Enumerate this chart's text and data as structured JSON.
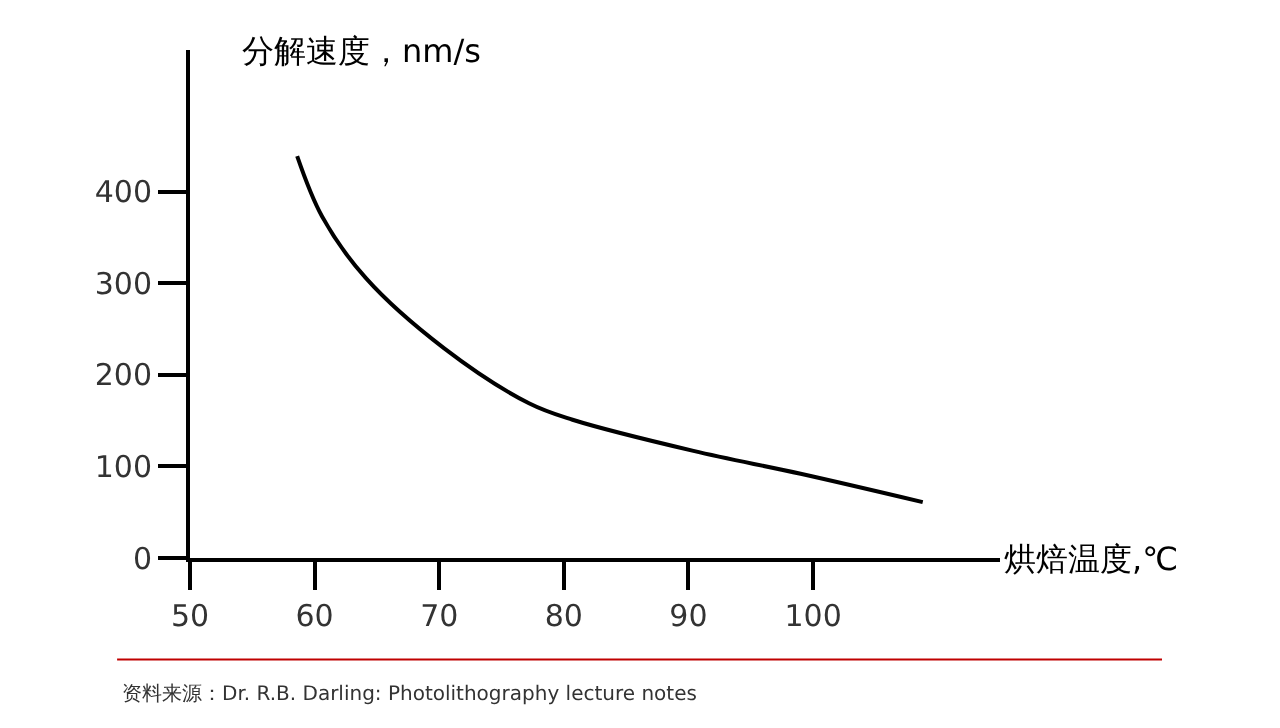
{
  "chart_data": {
    "type": "line",
    "xlabel": "烘焙温度,℃",
    "ylabel": "分解速度，nm/s",
    "x": [
      58.6,
      60.6,
      64.1,
      70.4,
      77.2,
      80.7,
      90.4,
      99.0,
      108.8
    ],
    "series": [
      {
        "color": "#000000",
        "values": [
          439,
          373,
          306,
          229,
          169,
          151,
          117,
          92,
          61
        ]
      }
    ],
    "xlim": [
      50,
      115
    ],
    "ylim": [
      0,
      555
    ],
    "xticks": [
      50,
      60,
      70,
      80,
      90,
      100
    ],
    "yticks": [
      0,
      100,
      200,
      300,
      400
    ],
    "marker": "none",
    "line_style": "solid",
    "annotations": [
      "资料来源：Dr. R.B. Darling: Photolithography lecture notes"
    ]
  }
}
